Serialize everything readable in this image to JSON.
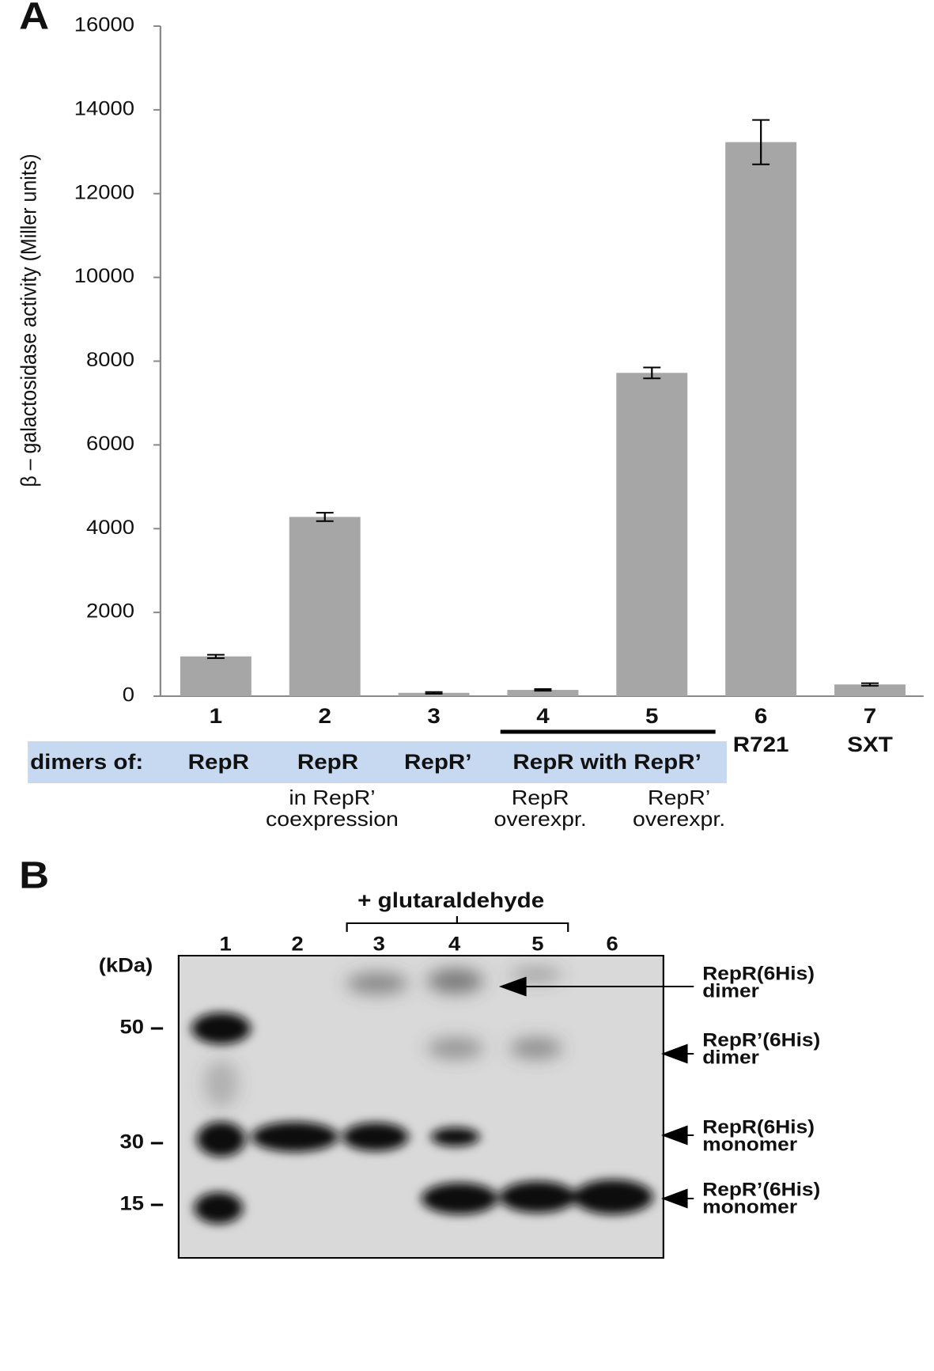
{
  "chart_data": {
    "type": "bar",
    "panel_label": "A",
    "y_label": "β – galactosidase  activity  (Miller units)",
    "categories": [
      "1",
      "2",
      "3",
      "4",
      "5",
      "6",
      "7"
    ],
    "category_sublabels": [
      null,
      null,
      null,
      null,
      null,
      "R721",
      "SXT"
    ],
    "values": [
      950,
      4280,
      80,
      150,
      7720,
      13230,
      280
    ],
    "errors": [
      40,
      100,
      20,
      20,
      130,
      530,
      30
    ],
    "color": "#a6a6a6",
    "ylim": [
      0,
      16000
    ],
    "yticks": [
      0,
      2000,
      4000,
      6000,
      8000,
      10000,
      12000,
      14000,
      16000
    ],
    "grid": false,
    "row_label": "dimers of:",
    "row_items": [
      "RepR",
      "RepR",
      "RepR’",
      "RepR with RepR’"
    ],
    "notes": [
      [
        "in RepR’",
        "coexpression"
      ],
      [
        "RepR",
        "overexpr."
      ],
      [
        "RepR’",
        "overexpr."
      ]
    ]
  },
  "gel": {
    "panel_label": "B",
    "treatment": "+ glutaraldehyde",
    "lanes": [
      "1",
      "2",
      "3",
      "4",
      "5",
      "6"
    ],
    "unit": "(kDa)",
    "markers": [
      50,
      30,
      15
    ],
    "band_labels": [
      [
        "RepR(6His)",
        "dimer"
      ],
      [
        "RepR’(6His)",
        "dimer"
      ],
      [
        "RepR(6His)",
        "monomer"
      ],
      [
        "RepR’(6His)",
        "monomer"
      ]
    ]
  }
}
